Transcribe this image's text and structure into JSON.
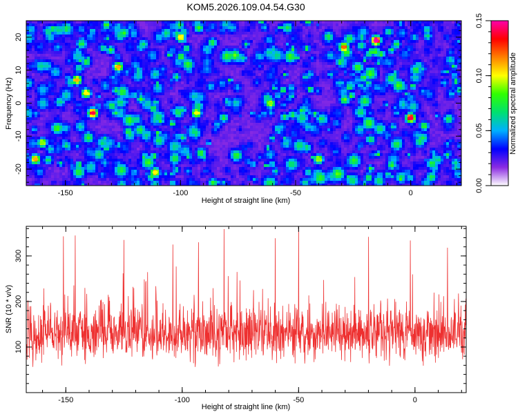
{
  "title": "KOM5.2026.109.04.54.G30",
  "chart_data": [
    {
      "type": "heatmap",
      "name": "spectrogram",
      "xlabel": "Height of straight line (km)",
      "ylabel": "Frequency (Hz)",
      "xlim": [
        -167,
        22
      ],
      "ylim": [
        -25,
        25
      ],
      "xticks": [
        -150,
        -100,
        -50,
        0
      ],
      "yticks": [
        -20,
        -10,
        0,
        10,
        20
      ],
      "colorbar": {
        "label": "Normalized spectral amplitude",
        "range": [
          0.0,
          0.15
        ],
        "ticks": [
          0.0,
          0.05,
          0.1,
          0.15
        ],
        "tick_labels": [
          "0.00",
          "0.05",
          "0.10",
          "0.15"
        ],
        "colors": [
          "#ffffff",
          "#8a2be2",
          "#0000ff",
          "#00b0ff",
          "#00e070",
          "#30ff00",
          "#ffff00",
          "#ff8000",
          "#ff0000",
          "#ff00aa"
        ]
      },
      "background_level": 0.02,
      "peaks": [
        {
          "x": -138,
          "y": -3,
          "v": 0.14
        },
        {
          "x": 0,
          "y": -4.5,
          "v": 0.14
        },
        {
          "x": -15,
          "y": 19,
          "v": 0.15
        },
        {
          "x": -127,
          "y": 11,
          "v": 0.11
        },
        {
          "x": -145,
          "y": 7,
          "v": 0.11
        },
        {
          "x": -163,
          "y": -17,
          "v": 0.11
        },
        {
          "x": -160,
          "y": -12,
          "v": 0.09
        },
        {
          "x": -29,
          "y": 17,
          "v": 0.12
        },
        {
          "x": -61,
          "y": 0,
          "v": 0.09
        },
        {
          "x": -93,
          "y": -3,
          "v": 0.1
        },
        {
          "x": -40,
          "y": -17,
          "v": 0.09
        },
        {
          "x": -111,
          "y": -21,
          "v": 0.1
        },
        {
          "x": -141,
          "y": 3,
          "v": 0.1
        },
        {
          "x": -100,
          "y": 20,
          "v": 0.1
        }
      ]
    },
    {
      "type": "line",
      "name": "snr",
      "xlabel": "Height of straight line (km)",
      "ylabel": "SNR (10 * v/v)",
      "xlim": [
        -167,
        22
      ],
      "ylim": [
        0,
        365
      ],
      "xticks": [
        -150,
        -100,
        -50,
        0
      ],
      "yticks": [
        100,
        200,
        300
      ],
      "color": "#ee3030",
      "baseline_mean": 130,
      "noise_amplitude": 85,
      "spikes": [
        {
          "x": -151,
          "y": 343
        },
        {
          "x": -146,
          "y": 345
        },
        {
          "x": -82,
          "y": 359
        },
        {
          "x": -60,
          "y": 339
        },
        {
          "x": -50,
          "y": 365
        },
        {
          "x": -20,
          "y": 342
        },
        {
          "x": -2,
          "y": 334
        },
        {
          "x": -125,
          "y": 335
        },
        {
          "x": -93,
          "y": 330
        },
        {
          "x": 14,
          "y": 318
        },
        {
          "x": -104,
          "y": 325
        }
      ]
    }
  ]
}
